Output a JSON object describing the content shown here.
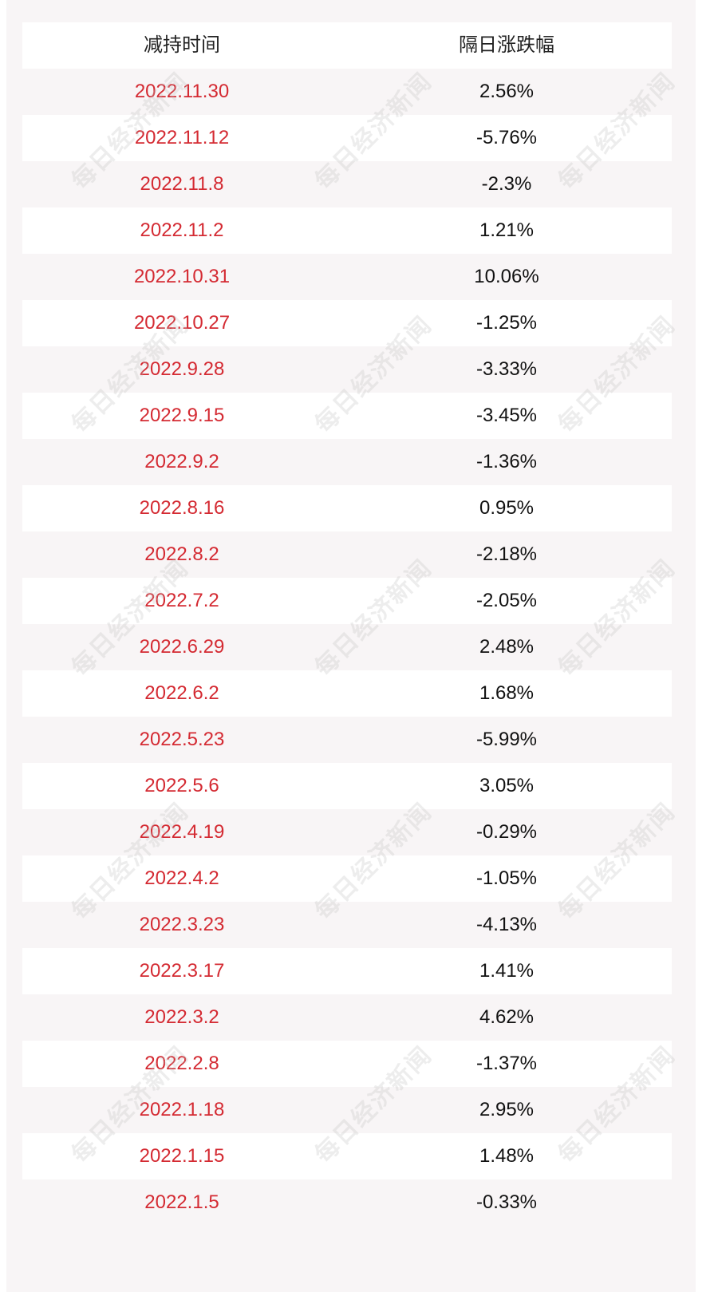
{
  "table": {
    "headers": [
      "减持时间",
      "隔日涨跌幅"
    ],
    "rows": [
      {
        "date": "2022.11.30",
        "change": "2.56%"
      },
      {
        "date": "2022.11.12",
        "change": "-5.76%"
      },
      {
        "date": "2022.11.8",
        "change": "-2.3%"
      },
      {
        "date": "2022.11.2",
        "change": "1.21%"
      },
      {
        "date": "2022.10.31",
        "change": "10.06%"
      },
      {
        "date": "2022.10.27",
        "change": "-1.25%"
      },
      {
        "date": "2022.9.28",
        "change": "-3.33%"
      },
      {
        "date": "2022.9.15",
        "change": "-3.45%"
      },
      {
        "date": "2022.9.2",
        "change": "-1.36%"
      },
      {
        "date": "2022.8.16",
        "change": "0.95%"
      },
      {
        "date": "2022.8.2",
        "change": "-2.18%"
      },
      {
        "date": "2022.7.2",
        "change": "-2.05%"
      },
      {
        "date": "2022.6.29",
        "change": "2.48%"
      },
      {
        "date": "2022.6.2",
        "change": "1.68%"
      },
      {
        "date": "2022.5.23",
        "change": "-5.99%"
      },
      {
        "date": "2022.5.6",
        "change": "3.05%"
      },
      {
        "date": "2022.4.19",
        "change": "-0.29%"
      },
      {
        "date": "2022.4.2",
        "change": "-1.05%"
      },
      {
        "date": "2022.3.23",
        "change": "-4.13%"
      },
      {
        "date": "2022.3.17",
        "change": "1.41%"
      },
      {
        "date": "2022.3.2",
        "change": "4.62%"
      },
      {
        "date": "2022.2.8",
        "change": "-1.37%"
      },
      {
        "date": "2022.1.18",
        "change": "2.95%"
      },
      {
        "date": "2022.1.15",
        "change": "1.48%"
      },
      {
        "date": "2022.1.5",
        "change": "-0.33%"
      }
    ]
  },
  "watermark": "每日经济新闻",
  "colors": {
    "date_text": "#d42a32",
    "value_text": "#111111",
    "header_text": "#222222",
    "stripe": "#f8f5f6",
    "row": "#ffffff"
  }
}
